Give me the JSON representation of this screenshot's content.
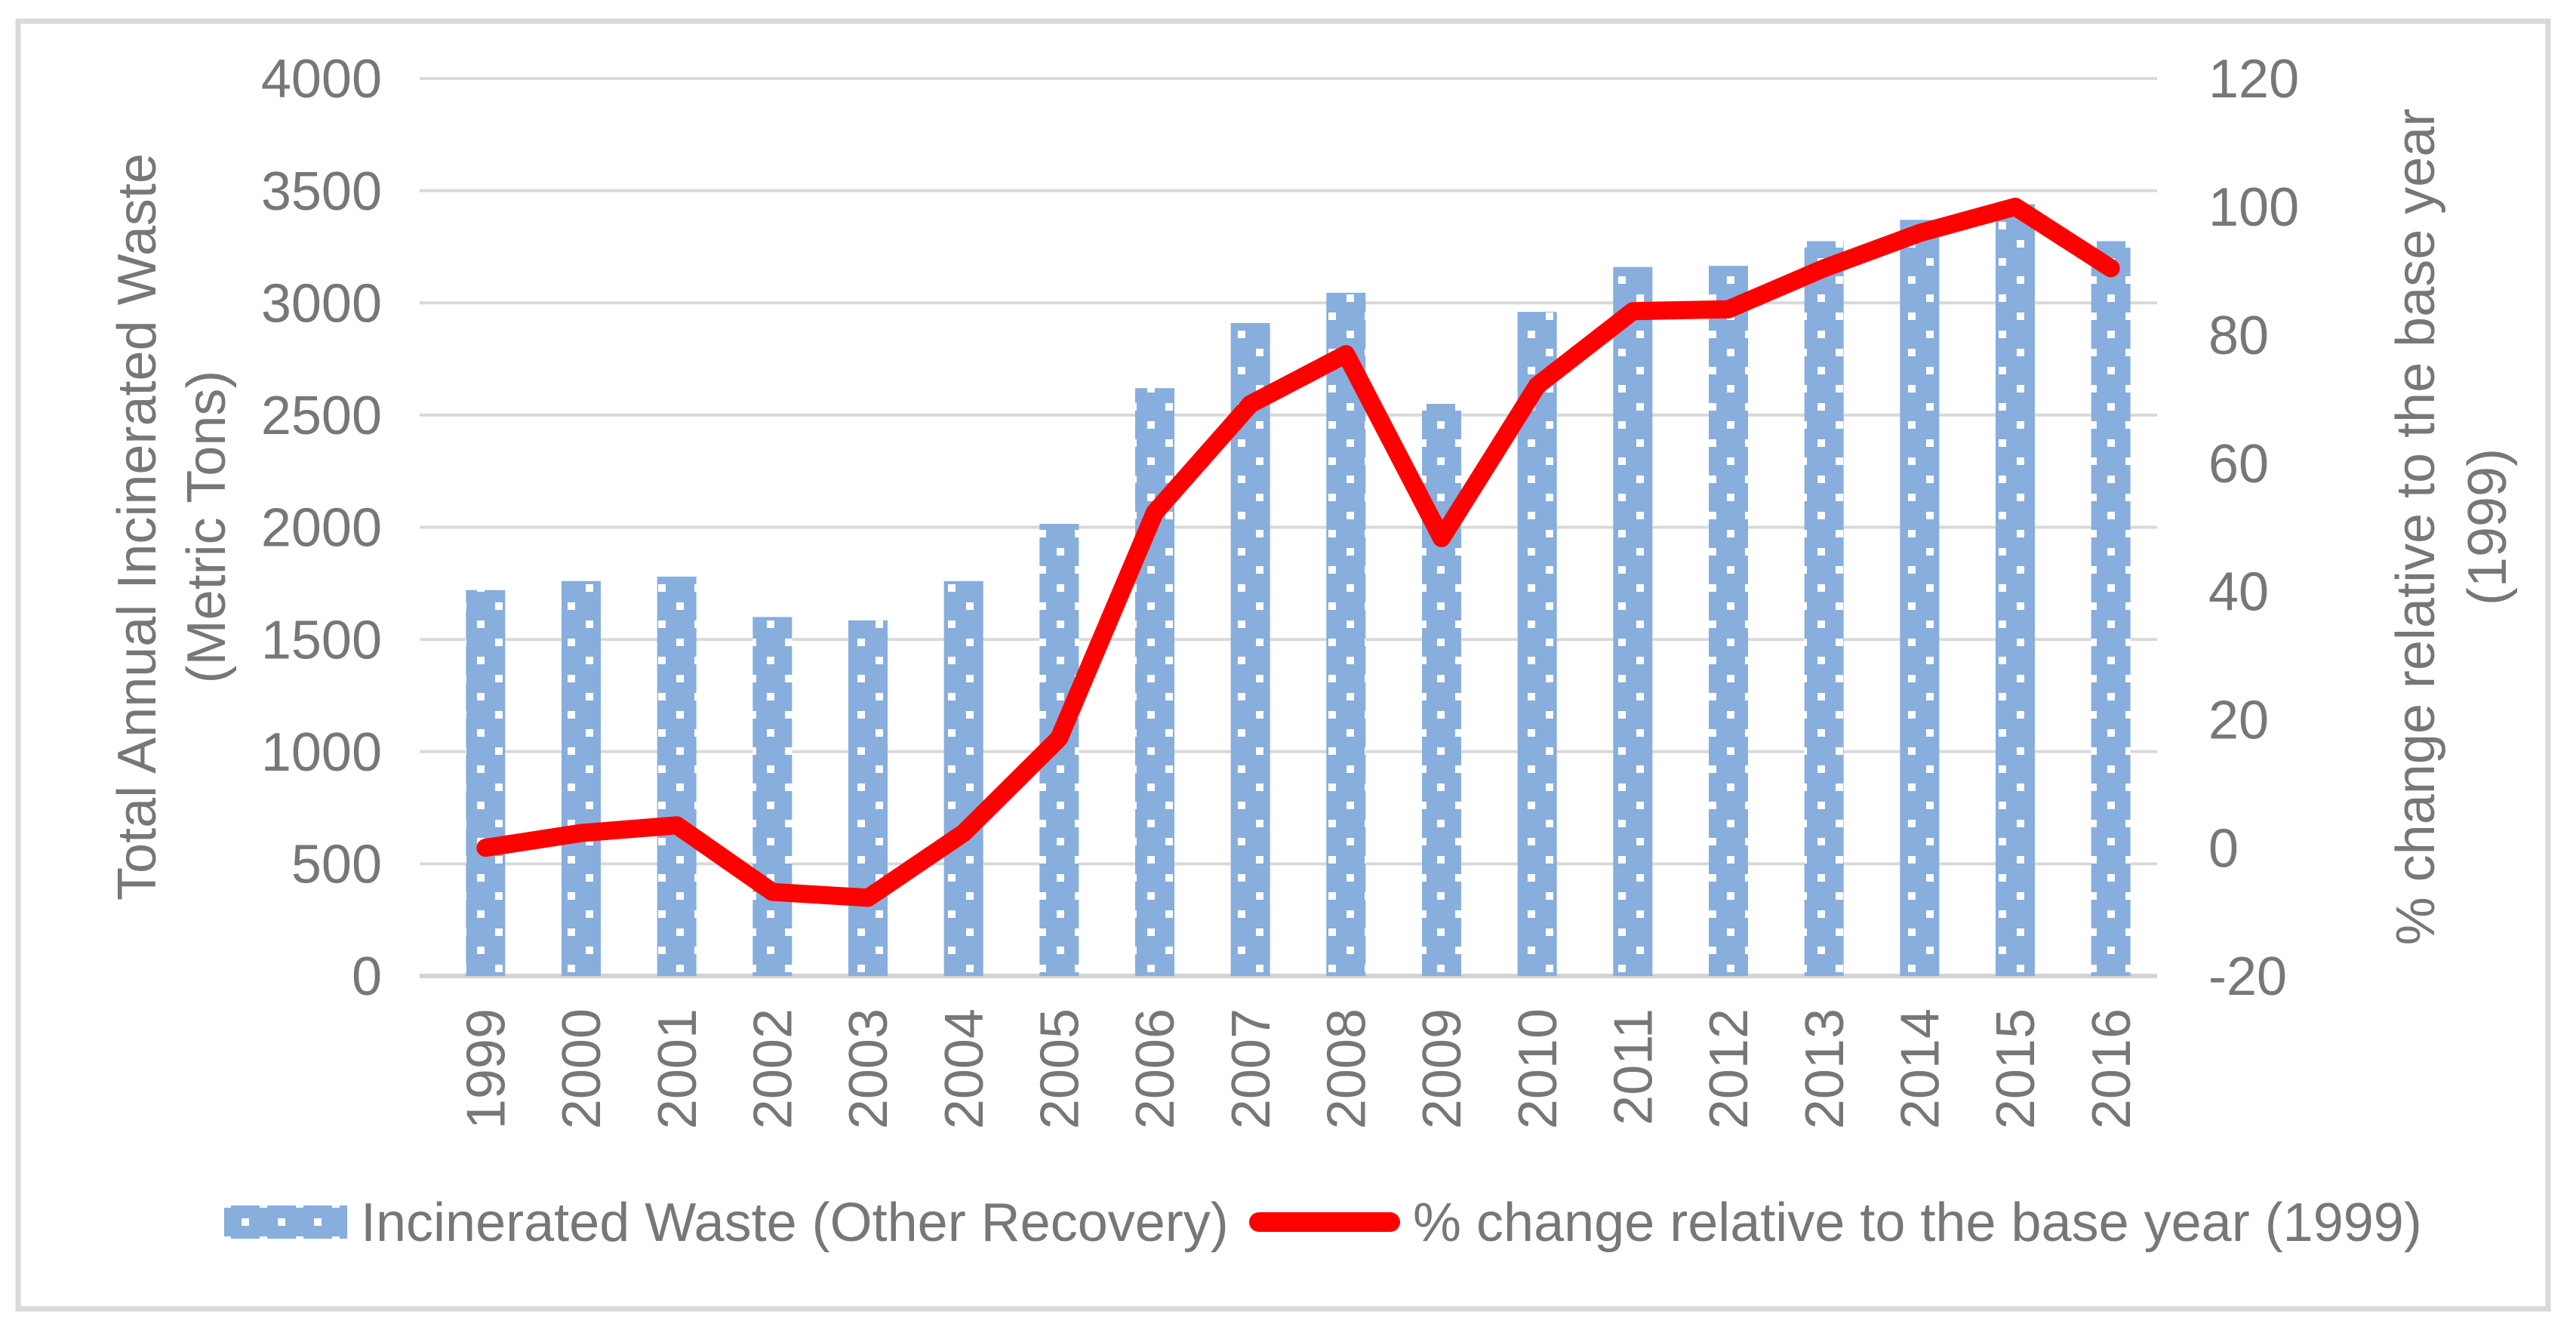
{
  "chart_data": {
    "type": "bar",
    "subtype": "combo-bar-line-dual-axis",
    "categories": [
      "1999",
      "2000",
      "2001",
      "2002",
      "2003",
      "2004",
      "2005",
      "2006",
      "2007",
      "2008",
      "2009",
      "2010",
      "2011",
      "2012",
      "2013",
      "2014",
      "2015",
      "2016"
    ],
    "series": [
      {
        "name": "Incinerated Waste (Other Recovery)",
        "type": "bar",
        "axis": "left",
        "values": [
          1720,
          1760,
          1780,
          1600,
          1585,
          1760,
          2015,
          2620,
          2910,
          3045,
          2550,
          2960,
          3160,
          3165,
          3275,
          3370,
          3440,
          3275
        ]
      },
      {
        "name": "% change relative to the base year (1999)",
        "type": "line",
        "axis": "right",
        "values": [
          0,
          2.3,
          3.5,
          -6.9,
          -7.8,
          2.3,
          17.1,
          52.3,
          69.2,
          77,
          48.3,
          72.1,
          83.7,
          84,
          90.4,
          95.9,
          100,
          90.4
        ]
      }
    ],
    "left_axis": {
      "title_line1": "Total Annual Incinerated Waste",
      "title_line2": "(Metric Tons)",
      "min": 0,
      "max": 4000,
      "step": 500,
      "tick_labels": [
        "4000",
        "3500",
        "3000",
        "2500",
        "2000",
        "1500",
        "1000",
        "500",
        "0"
      ]
    },
    "right_axis": {
      "title_line1": "% change relative to the base year",
      "title_line2": "(1999)",
      "min": -20,
      "max": 120,
      "step": 20,
      "tick_labels": [
        "120",
        "100",
        "80",
        "60",
        "40",
        "20",
        "0",
        "-20"
      ]
    },
    "legend_position": "bottom",
    "grid": true,
    "colors": {
      "bar_fill": "#87AEDC",
      "bar_dot": "#ffffff",
      "line": "#FE0000",
      "gridline": "#D9D9D9",
      "axis_line": "#D3D3D3",
      "frame_border": "#D9D9D9",
      "text": "#777777"
    }
  }
}
